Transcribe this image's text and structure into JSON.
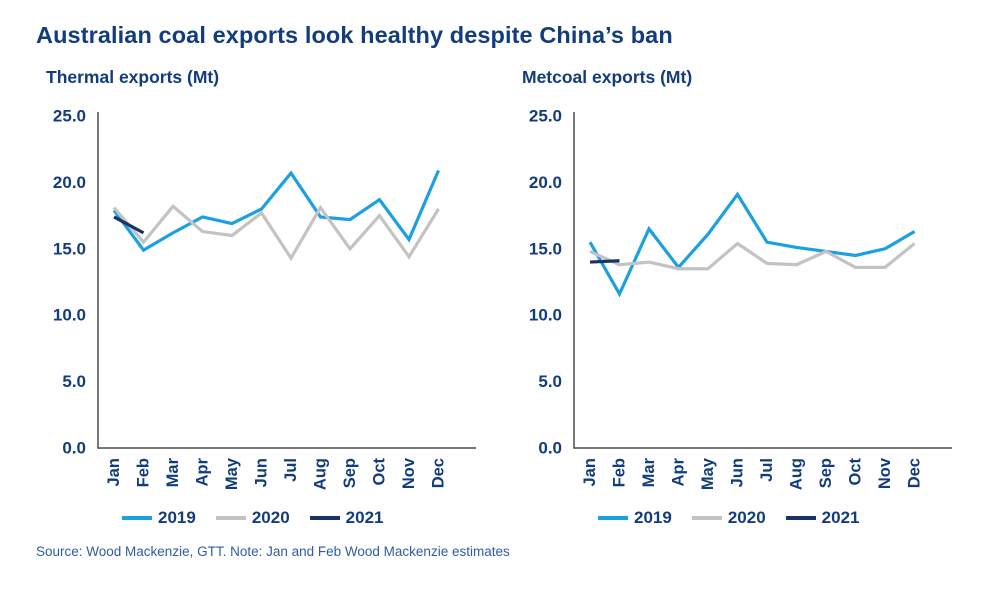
{
  "header": {
    "title": "Australian coal exports look healthy despite China’s ban"
  },
  "footer": {
    "source_note": "Source: Wood Mackenzie, GTT. Note: Jan and Feb Wood Mackenzie estimates"
  },
  "colors": {
    "navy_text": "#123C7E",
    "footer_blue": "#2E5DA6",
    "axis": "#4D4D4D",
    "series_2019": "#1BA0E2",
    "series_2020": "#C3C3C4",
    "series_2021": "#1A3365"
  },
  "chart_data": [
    {
      "type": "line",
      "title": "Thermal exports (Mt)",
      "xlabel": "",
      "ylabel": "Mt",
      "ylim": [
        0,
        25
      ],
      "yticks": [
        0,
        5,
        10,
        15,
        20,
        25
      ],
      "grid": false,
      "legend_position": "bottom",
      "categories": [
        "Jan",
        "Feb",
        "Mar",
        "Apr",
        "May",
        "Jun",
        "Jul",
        "Aug",
        "Sep",
        "Oct",
        "Nov",
        "Dec"
      ],
      "series": [
        {
          "name": "2019",
          "color": "#1BA0E2",
          "values": [
            17.9,
            14.9,
            16.2,
            17.4,
            16.9,
            18.0,
            20.7,
            17.4,
            17.2,
            18.7,
            15.7,
            20.9
          ]
        },
        {
          "name": "2020",
          "color": "#C3C3C4",
          "values": [
            18.1,
            15.5,
            18.2,
            16.3,
            16.0,
            17.7,
            14.3,
            18.1,
            15.0,
            17.5,
            14.4,
            18.0
          ]
        },
        {
          "name": "2021",
          "color": "#1A3365",
          "values": [
            17.4,
            16.2,
            null,
            null,
            null,
            null,
            null,
            null,
            null,
            null,
            null,
            null
          ]
        }
      ]
    },
    {
      "type": "line",
      "title": "Metcoal exports (Mt)",
      "xlabel": "",
      "ylabel": "Mt",
      "ylim": [
        0,
        25
      ],
      "yticks": [
        0,
        5,
        10,
        15,
        20,
        25
      ],
      "grid": false,
      "legend_position": "bottom",
      "categories": [
        "Jan",
        "Feb",
        "Mar",
        "Apr",
        "May",
        "Jun",
        "Jul",
        "Aug",
        "Sep",
        "Oct",
        "Nov",
        "Dec"
      ],
      "series": [
        {
          "name": "2019",
          "color": "#1BA0E2",
          "values": [
            15.5,
            11.6,
            16.5,
            13.6,
            16.1,
            19.1,
            15.5,
            15.1,
            14.8,
            14.5,
            15.0,
            16.3
          ]
        },
        {
          "name": "2020",
          "color": "#C3C3C4",
          "values": [
            14.8,
            13.8,
            14.0,
            13.5,
            13.5,
            15.4,
            13.9,
            13.8,
            14.8,
            13.6,
            13.6,
            15.4
          ]
        },
        {
          "name": "2021",
          "color": "#1A3365",
          "values": [
            14.0,
            14.1,
            null,
            null,
            null,
            null,
            null,
            null,
            null,
            null,
            null,
            null
          ]
        }
      ]
    }
  ]
}
